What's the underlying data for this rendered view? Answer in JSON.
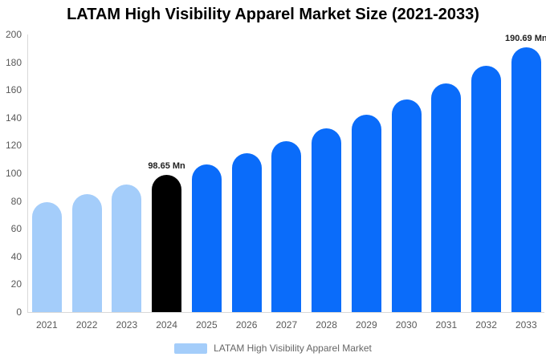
{
  "title": "LATAM High Visibility Apparel Market Size (2021-2033)",
  "legend": {
    "label": "LATAM High Visibility Apparel Market",
    "swatch_color": "#a4cdfa"
  },
  "chart_data": {
    "type": "bar",
    "title": "LATAM High Visibility Apparel Market Size (2021-2033)",
    "categories": [
      "2021",
      "2022",
      "2023",
      "2024",
      "2025",
      "2026",
      "2027",
      "2028",
      "2029",
      "2030",
      "2031",
      "2032",
      "2033"
    ],
    "series": [
      {
        "name": "LATAM High Visibility Apparel Market",
        "values": [
          79.2,
          85.2,
          91.7,
          98.65,
          106.2,
          114.2,
          122.9,
          132.3,
          142.3,
          153.1,
          164.8,
          177.3,
          190.69
        ]
      }
    ],
    "unit": "Mn",
    "bar_colors": [
      "#a4cdfa",
      "#a4cdfa",
      "#a4cdfa",
      "#000000",
      "#0a6cfa",
      "#0a6cfa",
      "#0a6cfa",
      "#0a6cfa",
      "#0a6cfa",
      "#0a6cfa",
      "#0a6cfa",
      "#0a6cfa",
      "#0a6cfa"
    ],
    "segments": {
      "historical_color": "#a4cdfa",
      "base_year_color": "#000000",
      "forecast_color": "#0a6cfa"
    },
    "data_labels": [
      {
        "index": 3,
        "category": "2024",
        "text": "98.65 Mn"
      },
      {
        "index": 12,
        "category": "2033",
        "text": "190.69 Mn"
      }
    ],
    "y_ticks": [
      0,
      20,
      40,
      60,
      80,
      100,
      120,
      140,
      160,
      180,
      200
    ],
    "ylim": [
      0,
      200
    ],
    "xlabel": "",
    "ylabel": "",
    "grid": false,
    "legend_position": "bottom",
    "style": {
      "axis_text_color": "#595959",
      "axis_line_color": "#d9d9d9",
      "data_label_color": "#222222",
      "legend_text_color": "#666666",
      "background": "#ffffff"
    }
  }
}
